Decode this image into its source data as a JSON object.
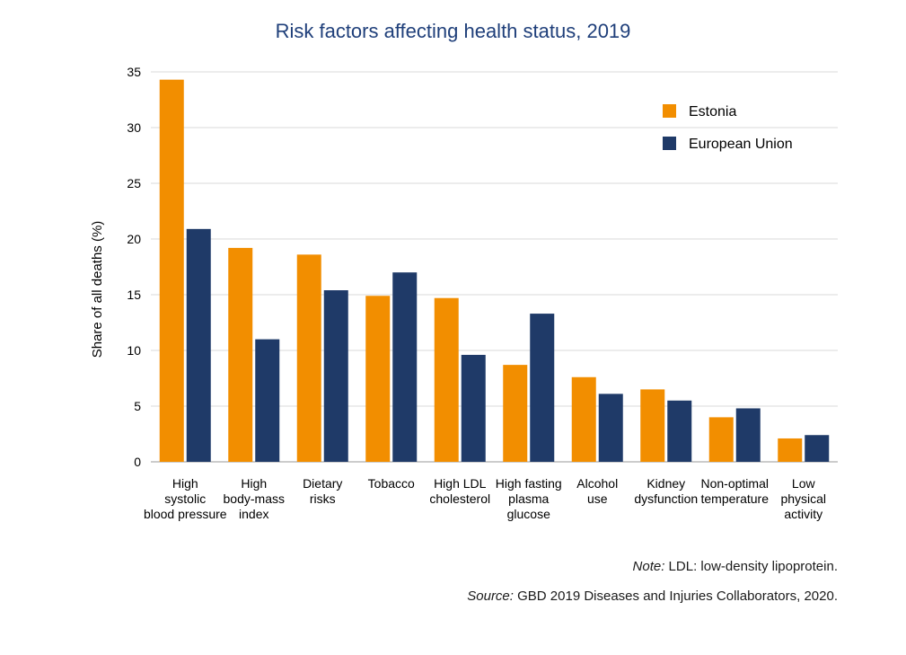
{
  "chart_data": {
    "type": "bar",
    "title": "Risk factors affecting health status, 2019",
    "ylabel": "Share of all deaths (%)",
    "ylim": [
      0,
      35
    ],
    "yticks": [
      0,
      5,
      10,
      15,
      20,
      25,
      30,
      35
    ],
    "grid": true,
    "legend_position": "top-right",
    "categories": [
      [
        "High",
        "systolic",
        "blood pressure"
      ],
      [
        "High",
        "body-mass",
        "index"
      ],
      [
        "Dietary",
        "risks"
      ],
      [
        "Tobacco"
      ],
      [
        "High LDL",
        "cholesterol"
      ],
      [
        "High fasting",
        "plasma",
        "glucose"
      ],
      [
        "Alcohol",
        "use"
      ],
      [
        "Kidney",
        "dysfunction"
      ],
      [
        "Non-optimal",
        "temperature"
      ],
      [
        "Low",
        "physical",
        "activity"
      ]
    ],
    "series": [
      {
        "name": "Estonia",
        "color": "#f28e00",
        "values": [
          34.3,
          19.2,
          18.6,
          14.9,
          14.7,
          8.7,
          7.6,
          6.5,
          4.0,
          2.1
        ]
      },
      {
        "name": "European Union",
        "color": "#1f3a68",
        "values": [
          20.9,
          11.0,
          15.4,
          17.0,
          9.6,
          13.3,
          6.1,
          5.5,
          4.8,
          2.4
        ]
      }
    ]
  },
  "notes": {
    "note_label": "Note:",
    "note_text": " LDL: low-density lipoprotein.",
    "source_label": "Source:",
    "source_text": " GBD 2019 Diseases and Injuries Collaborators, 2020."
  }
}
